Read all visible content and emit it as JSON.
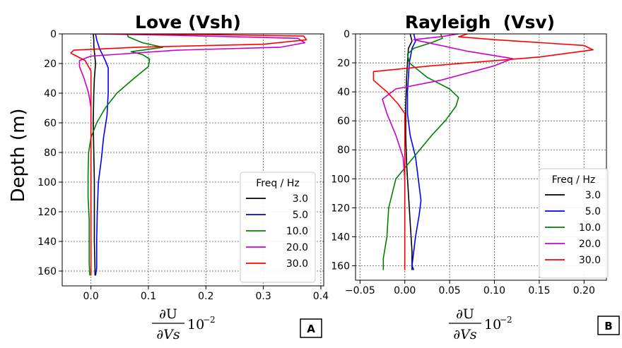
{
  "chart_data": [
    {
      "type": "line",
      "id": "A",
      "title": "Love (Vsh)",
      "ylabel": "Depth (m)",
      "xlabel": {
        "numerator": "∂U",
        "denominator": "∂Vs",
        "factor": "10",
        "exponent": "−2"
      },
      "xlim": [
        -0.05,
        0.405
      ],
      "ylim": [
        0,
        170
      ],
      "y_inverted": true,
      "xticks": [
        "0.0",
        "0.1",
        "0.2",
        "0.3",
        "0.4"
      ],
      "xtick_values": [
        0,
        0.1,
        0.2,
        0.3,
        0.4
      ],
      "yticks": [
        "0",
        "20",
        "40",
        "60",
        "80",
        "100",
        "120",
        "140",
        "160"
      ],
      "ytick_values": [
        0,
        20,
        40,
        60,
        80,
        100,
        120,
        140,
        160
      ],
      "grid": true,
      "legend": {
        "title": "Freq / Hz",
        "position": "lower-right"
      },
      "panel_label": "A",
      "series": [
        {
          "name": "3.0",
          "color": "#000000",
          "points": [
            [
              0.004,
              0
            ],
            [
              0.005,
              4
            ],
            [
              0.005,
              8
            ],
            [
              0.006,
              12
            ],
            [
              0.008,
              20
            ],
            [
              0.006,
              30
            ],
            [
              0.005,
              40
            ],
            [
              0.004,
              60
            ],
            [
              0.005,
              80
            ],
            [
              0.006,
              100
            ],
            [
              0.006,
              120
            ],
            [
              0.006,
              140
            ],
            [
              0.007,
              158
            ],
            [
              0.007,
              163
            ]
          ]
        },
        {
          "name": "5.0",
          "color": "#0000ff",
          "points": [
            [
              0.008,
              0
            ],
            [
              0.01,
              4
            ],
            [
              0.015,
              10
            ],
            [
              0.025,
              18
            ],
            [
              0.03,
              23
            ],
            [
              0.03,
              30
            ],
            [
              0.03,
              40
            ],
            [
              0.028,
              55
            ],
            [
              0.022,
              70
            ],
            [
              0.018,
              85
            ],
            [
              0.013,
              100
            ],
            [
              0.011,
              120
            ],
            [
              0.01,
              140
            ],
            [
              0.01,
              158
            ],
            [
              0.008,
              163
            ]
          ]
        },
        {
          "name": "10.0",
          "color": "#008000",
          "points": [
            [
              0.063,
              0
            ],
            [
              0.065,
              2
            ],
            [
              0.09,
              6
            ],
            [
              0.125,
              9
            ],
            [
              0.09,
              11
            ],
            [
              0.07,
              12
            ],
            [
              0.09,
              14
            ],
            [
              0.102,
              17
            ],
            [
              0.1,
              22
            ],
            [
              0.075,
              30
            ],
            [
              0.045,
              40
            ],
            [
              0.025,
              50
            ],
            [
              0.01,
              60
            ],
            [
              0.0,
              70
            ],
            [
              -0.004,
              80
            ],
            [
              -0.005,
              95
            ],
            [
              -0.005,
              110
            ],
            [
              -0.003,
              125
            ],
            [
              -0.003,
              140
            ],
            [
              -0.003,
              155
            ],
            [
              -0.002,
              163
            ]
          ]
        },
        {
          "name": "20.0",
          "color": "#cc00cc",
          "points": [
            [
              0.002,
              0
            ],
            [
              0.15,
              1
            ],
            [
              0.36,
              3
            ],
            [
              0.372,
              6
            ],
            [
              0.33,
              9
            ],
            [
              0.15,
              11
            ],
            [
              0.0,
              15
            ],
            [
              -0.02,
              18
            ],
            [
              -0.02,
              22
            ],
            [
              -0.012,
              30
            ],
            [
              -0.004,
              40
            ],
            [
              0.0,
              50
            ],
            [
              0.0,
              60
            ],
            [
              0.0,
              80
            ],
            [
              0.0,
              100
            ],
            [
              0.0,
              120
            ],
            [
              0.0,
              140
            ],
            [
              0.0,
              163
            ]
          ]
        },
        {
          "name": "30.0",
          "color": "#ff0000",
          "points": [
            [
              0.005,
              0
            ],
            [
              0.2,
              0.5
            ],
            [
              0.37,
              1.5
            ],
            [
              0.375,
              4
            ],
            [
              0.3,
              7
            ],
            [
              0.08,
              9
            ],
            [
              -0.03,
              11
            ],
            [
              -0.035,
              13
            ],
            [
              -0.025,
              15
            ],
            [
              -0.01,
              18
            ],
            [
              0.0,
              25
            ],
            [
              0.0,
              40
            ],
            [
              0.0,
              60
            ],
            [
              0.0,
              100
            ],
            [
              0.0,
              140
            ],
            [
              0.0,
              163
            ]
          ]
        }
      ]
    },
    {
      "type": "line",
      "id": "B",
      "title": "Rayleigh  (Vsv)",
      "ylabel": "",
      "xlabel": {
        "numerator": "∂U",
        "denominator": "∂Vs",
        "factor": "10",
        "exponent": "−2"
      },
      "xlim": [
        -0.055,
        0.225
      ],
      "ylim": [
        0,
        170
      ],
      "y_inverted": true,
      "xticks": [
        "−0.05",
        "0.00",
        "0.05",
        "0.10",
        "0.15",
        "0.20"
      ],
      "xtick_values": [
        -0.05,
        0,
        0.05,
        0.1,
        0.15,
        0.2
      ],
      "yticks": [
        "0",
        "20",
        "40",
        "60",
        "80",
        "100",
        "120",
        "140",
        "160"
      ],
      "ytick_values": [
        0,
        20,
        40,
        60,
        80,
        100,
        120,
        140,
        160
      ],
      "grid": true,
      "legend": {
        "title": "Freq / Hz",
        "position": "lower-right"
      },
      "panel_label": "B",
      "series": [
        {
          "name": "3.0",
          "color": "#000000",
          "points": [
            [
              0.006,
              0
            ],
            [
              0.008,
              5
            ],
            [
              0.004,
              10
            ],
            [
              0.002,
              30
            ],
            [
              0.001,
              50
            ],
            [
              0.001,
              70
            ],
            [
              0.002,
              90
            ],
            [
              0.004,
              110
            ],
            [
              0.006,
              130
            ],
            [
              0.008,
              150
            ],
            [
              0.008,
              160
            ],
            [
              0.008,
              163
            ]
          ]
        },
        {
          "name": "5.0",
          "color": "#0000ff",
          "points": [
            [
              0.01,
              0
            ],
            [
              0.012,
              5
            ],
            [
              0.008,
              10
            ],
            [
              0.005,
              20
            ],
            [
              0.003,
              40
            ],
            [
              0.003,
              55
            ],
            [
              0.006,
              70
            ],
            [
              0.012,
              85
            ],
            [
              0.015,
              100
            ],
            [
              0.018,
              115
            ],
            [
              0.016,
              125
            ],
            [
              0.012,
              140
            ],
            [
              0.01,
              150
            ],
            [
              0.008,
              160
            ],
            [
              0.01,
              163
            ]
          ]
        },
        {
          "name": "10.0",
          "color": "#008000",
          "points": [
            [
              0.04,
              0
            ],
            [
              0.042,
              3
            ],
            [
              0.03,
              6
            ],
            [
              0.01,
              10
            ],
            [
              0.003,
              14
            ],
            [
              0.005,
              20
            ],
            [
              0.025,
              30
            ],
            [
              0.05,
              38
            ],
            [
              0.06,
              44
            ],
            [
              0.057,
              50
            ],
            [
              0.045,
              60
            ],
            [
              0.03,
              70
            ],
            [
              0.01,
              85
            ],
            [
              -0.01,
              100
            ],
            [
              -0.018,
              120
            ],
            [
              -0.02,
              140
            ],
            [
              -0.024,
              155
            ],
            [
              -0.024,
              163
            ]
          ]
        },
        {
          "name": "20.0",
          "color": "#cc00cc",
          "points": [
            [
              0.06,
              0
            ],
            [
              0.04,
              2
            ],
            [
              0.01,
              4
            ],
            [
              0.025,
              6
            ],
            [
              0.07,
              12
            ],
            [
              0.12,
              17
            ],
            [
              0.1,
              22
            ],
            [
              0.04,
              32
            ],
            [
              -0.01,
              38
            ],
            [
              -0.025,
              45
            ],
            [
              -0.02,
              55
            ],
            [
              -0.01,
              70
            ],
            [
              -0.002,
              85
            ],
            [
              0.0,
              100
            ],
            [
              0.0,
              120
            ],
            [
              0.0,
              140
            ],
            [
              0.0,
              163
            ]
          ]
        },
        {
          "name": "30.0",
          "color": "#ff0000",
          "points": [
            [
              0.07,
              0
            ],
            [
              0.06,
              2
            ],
            [
              0.1,
              4
            ],
            [
              0.2,
              8
            ],
            [
              0.21,
              11
            ],
            [
              0.15,
              16
            ],
            [
              0.03,
              22
            ],
            [
              -0.035,
              26
            ],
            [
              -0.035,
              32
            ],
            [
              -0.02,
              40
            ],
            [
              -0.008,
              48
            ],
            [
              0.0,
              55
            ],
            [
              0.0,
              80
            ],
            [
              0.0,
              120
            ],
            [
              0.0,
              163
            ]
          ]
        }
      ]
    }
  ]
}
